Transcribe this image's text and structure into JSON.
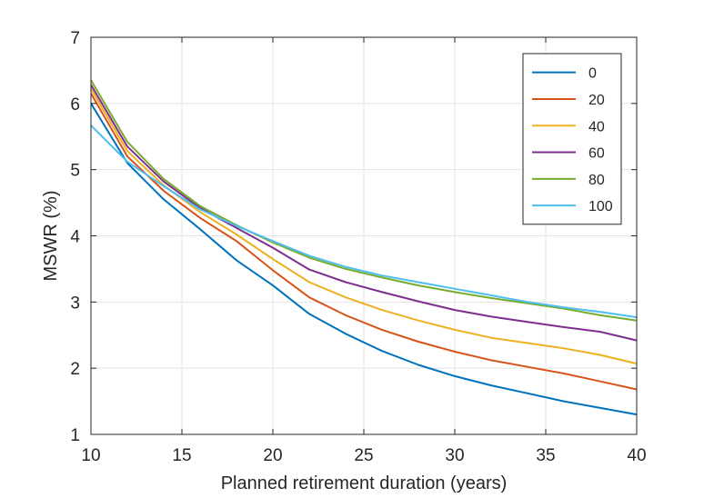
{
  "chart_data": {
    "type": "line",
    "xlabel": "Planned retirement duration (years)",
    "ylabel": "MSWR (%)",
    "xlim": [
      10,
      40
    ],
    "ylim": [
      1,
      7
    ],
    "xticks": [
      "10",
      "15",
      "20",
      "25",
      "30",
      "35",
      "40"
    ],
    "yticks": [
      "1",
      "2",
      "3",
      "4",
      "5",
      "6",
      "7"
    ],
    "grid": true,
    "legend_position": "top-right",
    "x": [
      10,
      12,
      14,
      16,
      18,
      20,
      22,
      24,
      26,
      28,
      30,
      32,
      34,
      36,
      38,
      40
    ],
    "series": [
      {
        "name": "0",
        "color": "#0072BD",
        "values": [
          6.0,
          5.1,
          4.55,
          4.1,
          3.63,
          3.25,
          2.82,
          2.52,
          2.26,
          2.05,
          1.88,
          1.74,
          1.62,
          1.5,
          1.4,
          1.3
        ]
      },
      {
        "name": "20",
        "color": "#D95319",
        "values": [
          6.15,
          5.2,
          4.68,
          4.27,
          3.92,
          3.48,
          3.07,
          2.8,
          2.58,
          2.4,
          2.25,
          2.12,
          2.02,
          1.92,
          1.8,
          1.68
        ]
      },
      {
        "name": "40",
        "color": "#EDB120",
        "values": [
          6.22,
          5.28,
          4.76,
          4.36,
          4.02,
          3.65,
          3.3,
          3.07,
          2.88,
          2.72,
          2.58,
          2.46,
          2.38,
          2.3,
          2.2,
          2.07
        ]
      },
      {
        "name": "60",
        "color": "#7E2F8E",
        "values": [
          6.28,
          5.35,
          4.82,
          4.42,
          4.12,
          3.82,
          3.49,
          3.3,
          3.15,
          3.01,
          2.88,
          2.78,
          2.7,
          2.62,
          2.55,
          2.42
        ]
      },
      {
        "name": "80",
        "color": "#77AC30",
        "values": [
          6.35,
          5.42,
          4.86,
          4.45,
          4.16,
          3.9,
          3.67,
          3.5,
          3.37,
          3.25,
          3.15,
          3.06,
          2.98,
          2.9,
          2.8,
          2.72
        ]
      },
      {
        "name": "100",
        "color": "#4DBEEE",
        "values": [
          5.67,
          5.12,
          4.75,
          4.4,
          4.15,
          3.92,
          3.7,
          3.53,
          3.4,
          3.3,
          3.2,
          3.1,
          3.0,
          2.92,
          2.85,
          2.77
        ]
      }
    ]
  }
}
